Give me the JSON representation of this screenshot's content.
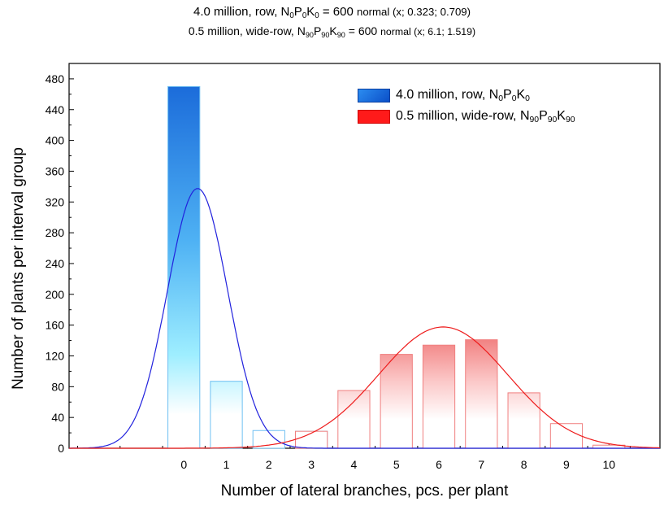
{
  "title_line1": {
    "text": "4.0 million, row, N",
    "s1": "0",
    "p": "P",
    "s2": "0",
    "k": "K",
    "s3": "0",
    "eq": " = 600 ",
    "note": "normal (x; 0.323; 0.709)"
  },
  "title_line2": {
    "text": "0.5 million, wide-row, N",
    "s1": "90",
    "p": "P",
    "s2": "90",
    "k": "K",
    "s3": "90",
    "eq": " = 600 ",
    "note": "normal (x; 6.1; 1.519)"
  },
  "xlabel": "Number of lateral branches, pcs. per plant",
  "ylabel": "Number of plants per interval group",
  "legend": [
    {
      "text": "4.0 million, row, N",
      "s1": "0",
      "p": "P",
      "s2": "0",
      "k": "K",
      "s3": "0",
      "color": "#1e6fe0"
    },
    {
      "text": "0.5 million, wide-row, N",
      "s1": "90",
      "p": "P",
      "s2": "90",
      "k": "K",
      "s3": "90",
      "color": "#ff1a1a"
    }
  ],
  "chart_data": {
    "type": "bar",
    "xlim": [
      -2.7,
      11.2
    ],
    "ylim": [
      0,
      500
    ],
    "xticks": [
      0,
      1,
      2,
      3,
      4,
      5,
      6,
      7,
      8,
      9,
      10
    ],
    "yticks": [
      0,
      40,
      80,
      120,
      160,
      200,
      240,
      280,
      320,
      360,
      400,
      440,
      480
    ],
    "series": [
      {
        "name": "4.0 million, row, N0P0K0",
        "color": "#1e6fe0",
        "x": [
          0,
          1,
          2,
          3
        ],
        "values": [
          470,
          87,
          23,
          22
        ],
        "normal_fit": {
          "mean": 0.323,
          "sd": 0.709,
          "n": 600
        }
      },
      {
        "name": "0.5 million, wide-row, N90P90K90",
        "color": "#ff1a1a",
        "x": [
          3,
          4,
          5,
          6,
          7,
          8,
          9,
          10
        ],
        "values": [
          22,
          75,
          122,
          134,
          141,
          72,
          32,
          4
        ],
        "normal_fit": {
          "mean": 6.1,
          "sd": 1.519,
          "n": 600
        }
      }
    ]
  }
}
